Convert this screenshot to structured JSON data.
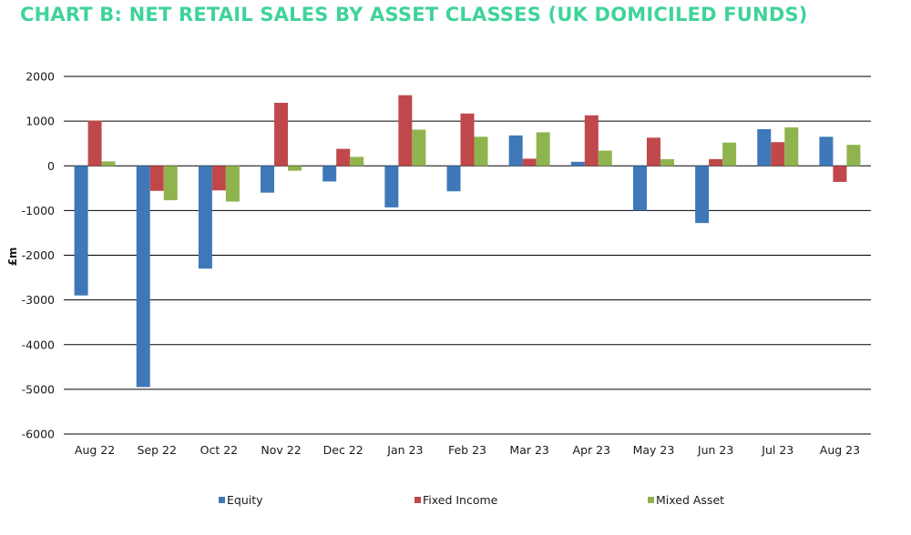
{
  "colors": {
    "title": "#3fd39a",
    "equity": "#3f78b8",
    "fixed_income": "#c0484b",
    "mixed_asset": "#8fb44e",
    "gridline": "#000000"
  },
  "chart_data": {
    "type": "bar",
    "title": "CHART B:  NET RETAIL SALES BY ASSET CLASSES (UK DOMICILED FUNDS)",
    "xlabel": "",
    "ylabel": "£m",
    "ylim": [
      -6000,
      2000
    ],
    "yticks": [
      2000,
      1000,
      0,
      -1000,
      -2000,
      -3000,
      -4000,
      -5000,
      -6000
    ],
    "grid": true,
    "legend_position": "bottom",
    "categories": [
      "Aug 22",
      "Sep 22",
      "Oct 22",
      "Nov 22",
      "Dec 22",
      "Jan 23",
      "Feb 23",
      "Mar 23",
      "Apr 23",
      "May 23",
      "Jun 23",
      "Jul 23",
      "Aug 23"
    ],
    "series": [
      {
        "name": "Equity",
        "values": [
          -2900,
          -4950,
          -2300,
          -600,
          -350,
          -930,
          -570,
          680,
          90,
          -1000,
          -1280,
          820,
          650
        ]
      },
      {
        "name": "Fixed Income",
        "values": [
          1010,
          -560,
          -550,
          1410,
          380,
          1580,
          1170,
          160,
          1130,
          630,
          150,
          530,
          -360
        ]
      },
      {
        "name": "Mixed Asset",
        "values": [
          100,
          -770,
          -800,
          -110,
          200,
          810,
          650,
          750,
          340,
          150,
          520,
          860,
          470
        ]
      }
    ]
  }
}
